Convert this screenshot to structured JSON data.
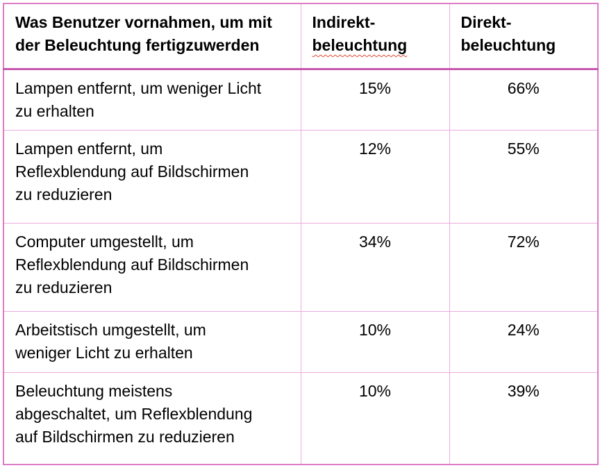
{
  "table": {
    "header": {
      "col1": "Was Benutzer vornahmen, um mit\nder Beleuchtung fertigzuwerden",
      "col2_line1": "Indirekt-",
      "col2_line2": "beleuchtung",
      "col3_line1": "Direkt-",
      "col3_line2": "beleuchtung"
    },
    "rows": [
      {
        "label": "Lampen entfernt, um weniger Licht\nzu erhalten",
        "indirect": "15%",
        "direct": "66%"
      },
      {
        "label": "Lampen entfernt, um\nReflexblendung auf Bildschirmen\nzu reduzieren",
        "indirect": "12%",
        "direct": "55%"
      },
      {
        "label": "Computer umgestellt, um\nReflexblendung auf Bildschirmen\nzu reduzieren",
        "indirect": "34%",
        "direct": "72%"
      },
      {
        "label": "Arbeitstisch umgestellt, um\nweniger Licht zu erhalten",
        "indirect": "10%",
        "direct": "24%"
      },
      {
        "label": "Beleuchtung meistens\nabgeschaltet, um Reflexblendung\nauf Bildschirmen zu reduzieren",
        "indirect": "10%",
        "direct": "39%"
      }
    ],
    "colors": {
      "outer_border": "#dd7cc7",
      "header_separator": "#c657ae",
      "inner_border": "#edaade",
      "spellcheck_underline": "#e0482e",
      "text": "#000000",
      "background": "#ffffff"
    }
  }
}
